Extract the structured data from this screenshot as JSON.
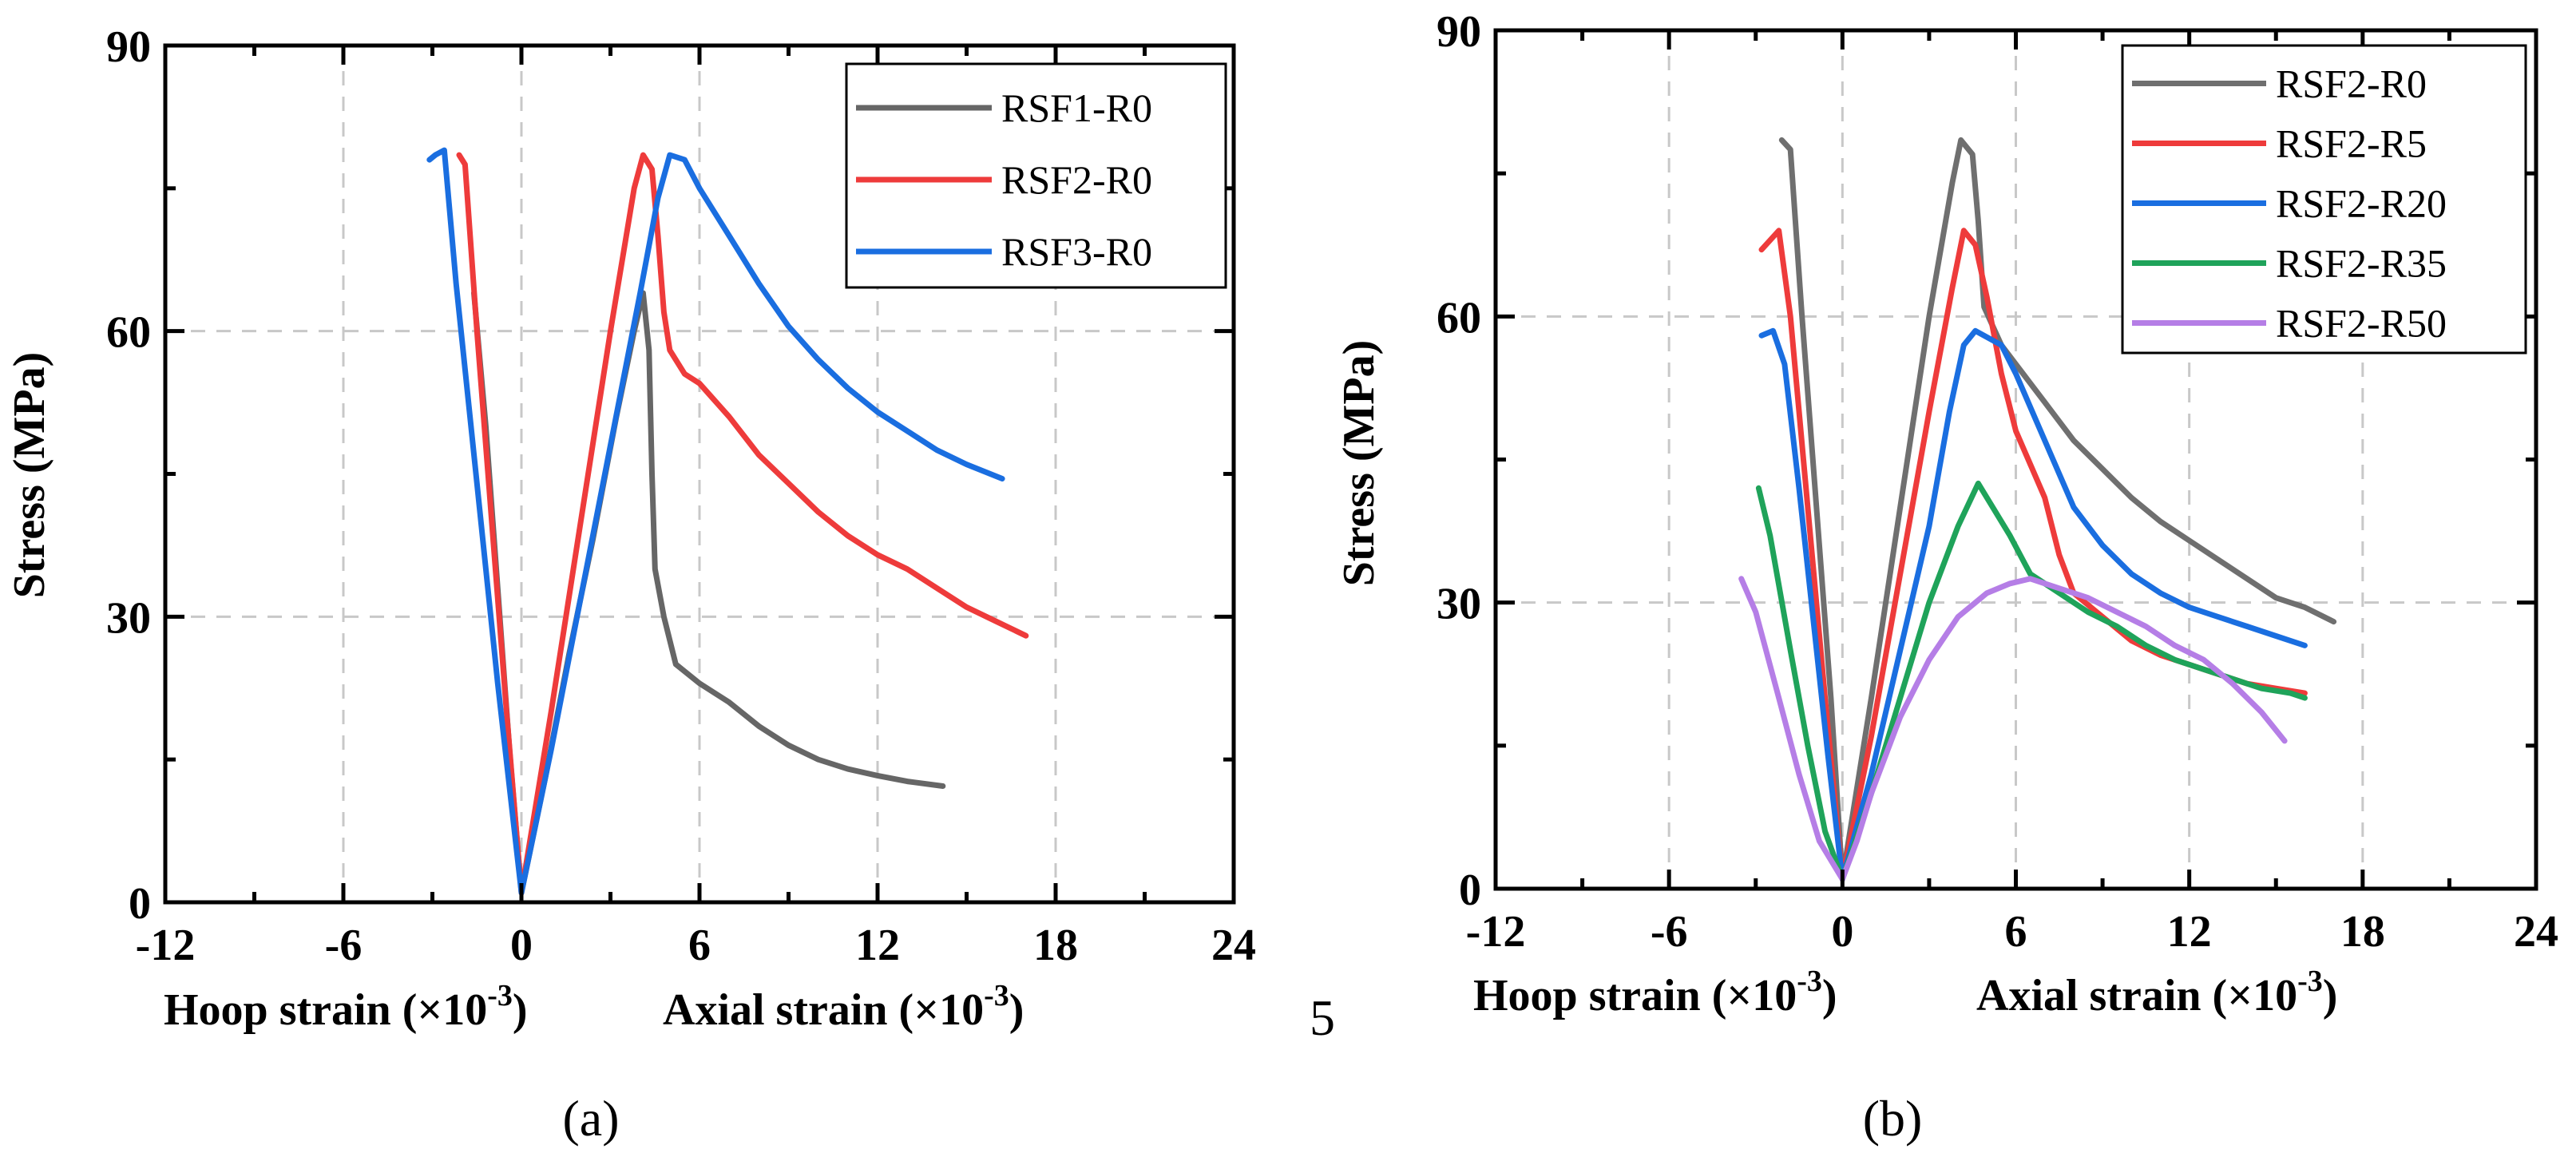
{
  "chart_data": [
    {
      "type": "line",
      "panel_label": "(a)",
      "xlim": [
        -12,
        24
      ],
      "ylim": [
        0,
        90
      ],
      "xticks": [
        "-12",
        "-6",
        "0",
        "6",
        "12",
        "18",
        "24"
      ],
      "yticks": [
        "0",
        "30",
        "60",
        "90"
      ],
      "ylabel": "Stress (MPa)",
      "xlabel_left": "Hoop strain (×10",
      "xlabel_right": "Axial strain (×10",
      "xlabel_exp": "-3",
      "xlabel_close": ")",
      "grid": true,
      "legend_position": "top-right",
      "series": [
        {
          "name": "RSF1-R0",
          "color": "#666666",
          "hoop": [
            [
              -1.6,
              64
            ],
            [
              -1.2,
              50
            ],
            [
              -0.8,
              33
            ],
            [
              -0.4,
              16
            ],
            [
              0,
              1
            ]
          ],
          "axial": [
            [
              0,
              1
            ],
            [
              0.8,
              13
            ],
            [
              1.6,
              26
            ],
            [
              2.4,
              38
            ],
            [
              3.2,
              51
            ],
            [
              3.8,
              60
            ],
            [
              4.1,
              64
            ],
            [
              4.3,
              58
            ],
            [
              4.4,
              45
            ],
            [
              4.5,
              35
            ],
            [
              4.8,
              30
            ],
            [
              5.2,
              25
            ],
            [
              6,
              23
            ],
            [
              7,
              21
            ],
            [
              8,
              18.5
            ],
            [
              9,
              16.5
            ],
            [
              10,
              15
            ],
            [
              11,
              14
            ],
            [
              12,
              13.3
            ],
            [
              13,
              12.7
            ],
            [
              14.2,
              12.2
            ]
          ]
        },
        {
          "name": "RSF2-R0",
          "color": "#ee3b3b",
          "hoop": [
            [
              -2.1,
              78.5
            ],
            [
              -1.9,
              77.5
            ],
            [
              -1.5,
              60
            ],
            [
              -1,
              40
            ],
            [
              -0.5,
              20
            ],
            [
              0,
              1
            ]
          ],
          "axial": [
            [
              0,
              1
            ],
            [
              1,
              20
            ],
            [
              2,
              40
            ],
            [
              3,
              60
            ],
            [
              3.8,
              75
            ],
            [
              4.1,
              78.5
            ],
            [
              4.4,
              77
            ],
            [
              4.6,
              70
            ],
            [
              4.8,
              62
            ],
            [
              5,
              58
            ],
            [
              5.5,
              55.5
            ],
            [
              6,
              54.5
            ],
            [
              7,
              51
            ],
            [
              8,
              47
            ],
            [
              9,
              44
            ],
            [
              10,
              41
            ],
            [
              11,
              38.5
            ],
            [
              12,
              36.5
            ],
            [
              13,
              35
            ],
            [
              14,
              33
            ],
            [
              15,
              31
            ],
            [
              16,
              29.5
            ],
            [
              17,
              28
            ]
          ]
        },
        {
          "name": "RSF3-R0",
          "color": "#1a6ee0",
          "hoop": [
            [
              -3.1,
              78
            ],
            [
              -2.9,
              78.5
            ],
            [
              -2.6,
              79
            ],
            [
              -2.2,
              65
            ],
            [
              -1.5,
              44
            ],
            [
              -0.8,
              23
            ],
            [
              0,
              1
            ]
          ],
          "axial": [
            [
              0,
              1
            ],
            [
              1,
              16
            ],
            [
              2,
              32
            ],
            [
              3,
              48
            ],
            [
              4,
              64
            ],
            [
              4.6,
              74
            ],
            [
              5,
              78.5
            ],
            [
              5.5,
              78
            ],
            [
              6,
              75
            ],
            [
              7,
              70
            ],
            [
              8,
              65
            ],
            [
              9,
              60.5
            ],
            [
              10,
              57
            ],
            [
              11,
              54
            ],
            [
              12,
              51.5
            ],
            [
              13,
              49.5
            ],
            [
              14,
              47.5
            ],
            [
              15,
              46
            ],
            [
              16.2,
              44.5
            ]
          ]
        }
      ]
    },
    {
      "type": "line",
      "panel_label": "(b)",
      "xlim": [
        -12,
        24
      ],
      "ylim": [
        0,
        90
      ],
      "xticks": [
        "-12",
        "-6",
        "0",
        "6",
        "12",
        "18",
        "24"
      ],
      "yticks": [
        "0",
        "30",
        "60",
        "90"
      ],
      "ylabel": "Stress (MPa)",
      "xlabel_left": "Hoop strain (×10",
      "xlabel_right": "Axial strain (×10",
      "xlabel_exp": "-3",
      "xlabel_close": ")",
      "grid": true,
      "legend_position": "top-right",
      "series": [
        {
          "name": "RSF2-R0",
          "color": "#6f6f6f",
          "hoop": [
            [
              -2.1,
              78.5
            ],
            [
              -1.8,
              77.5
            ],
            [
              -1.4,
              60
            ],
            [
              -0.9,
              40
            ],
            [
              -0.4,
              20
            ],
            [
              0,
              1
            ]
          ],
          "axial": [
            [
              0,
              1
            ],
            [
              1,
              20
            ],
            [
              2,
              40
            ],
            [
              3,
              60
            ],
            [
              3.8,
              74
            ],
            [
              4.1,
              78.5
            ],
            [
              4.5,
              77
            ],
            [
              4.7,
              70
            ],
            [
              4.9,
              61
            ],
            [
              5.5,
              57
            ],
            [
              6,
              55
            ],
            [
              7,
              51
            ],
            [
              8,
              47
            ],
            [
              9,
              44
            ],
            [
              10,
              41
            ],
            [
              11,
              38.5
            ],
            [
              12,
              36.5
            ],
            [
              13,
              34.5
            ],
            [
              14,
              32.5
            ],
            [
              15,
              30.5
            ],
            [
              16,
              29.5
            ],
            [
              17,
              28
            ]
          ]
        },
        {
          "name": "RSF2-R5",
          "color": "#ee3b3b",
          "hoop": [
            [
              -2.8,
              67
            ],
            [
              -2.5,
              68
            ],
            [
              -2.2,
              69
            ],
            [
              -1.8,
              60
            ],
            [
              -1.2,
              40
            ],
            [
              -0.6,
              20
            ],
            [
              0,
              1
            ]
          ],
          "axial": [
            [
              0,
              1
            ],
            [
              1,
              16
            ],
            [
              2,
              33
            ],
            [
              3,
              50
            ],
            [
              3.8,
              63
            ],
            [
              4.2,
              69
            ],
            [
              4.6,
              67.5
            ],
            [
              5,
              62
            ],
            [
              5.5,
              54
            ],
            [
              6,
              48
            ],
            [
              7,
              41
            ],
            [
              7.5,
              35
            ],
            [
              8,
              31
            ],
            [
              9,
              28.5
            ],
            [
              10,
              26
            ],
            [
              11,
              24.5
            ],
            [
              12,
              23.5
            ],
            [
              13,
              22.5
            ],
            [
              14,
              21.5
            ],
            [
              15,
              21
            ],
            [
              16,
              20.5
            ]
          ]
        },
        {
          "name": "RSF2-R20",
          "color": "#1a6ee0",
          "hoop": [
            [
              -2.8,
              58
            ],
            [
              -2.4,
              58.5
            ],
            [
              -2,
              55
            ],
            [
              -1.5,
              42
            ],
            [
              -1,
              28
            ],
            [
              -0.5,
              14
            ],
            [
              0,
              1
            ]
          ],
          "axial": [
            [
              0,
              1
            ],
            [
              1,
              12
            ],
            [
              2,
              25
            ],
            [
              3,
              38
            ],
            [
              3.7,
              50
            ],
            [
              4.2,
              57
            ],
            [
              4.6,
              58.5
            ],
            [
              5.5,
              57
            ],
            [
              6,
              54
            ],
            [
              7,
              47
            ],
            [
              8,
              40
            ],
            [
              9,
              36
            ],
            [
              10,
              33
            ],
            [
              11,
              31
            ],
            [
              12,
              29.5
            ],
            [
              13,
              28.5
            ],
            [
              14,
              27.5
            ],
            [
              15,
              26.5
            ],
            [
              16,
              25.5
            ]
          ]
        },
        {
          "name": "RSF2-R35",
          "color": "#1fa35a",
          "hoop": [
            [
              -2.9,
              42
            ],
            [
              -2.5,
              37
            ],
            [
              -1.8,
              25
            ],
            [
              -1.2,
              15
            ],
            [
              -0.6,
              6
            ],
            [
              0,
              1
            ]
          ],
          "axial": [
            [
              0,
              1
            ],
            [
              1,
              10
            ],
            [
              2,
              20
            ],
            [
              3,
              30
            ],
            [
              4,
              38
            ],
            [
              4.7,
              42.5
            ],
            [
              5.2,
              40
            ],
            [
              5.8,
              37
            ],
            [
              6.5,
              33
            ],
            [
              7.5,
              31
            ],
            [
              8.5,
              29
            ],
            [
              9.5,
              27.5
            ],
            [
              10.5,
              25.5
            ],
            [
              11.5,
              24
            ],
            [
              12.5,
              23
            ],
            [
              13.5,
              22
            ],
            [
              14.5,
              21
            ],
            [
              15.5,
              20.5
            ],
            [
              16,
              20
            ]
          ]
        },
        {
          "name": "RSF2-R50",
          "color": "#b57ee6",
          "hoop": [
            [
              -3.5,
              32.5
            ],
            [
              -3,
              29
            ],
            [
              -2.2,
              20
            ],
            [
              -1.5,
              12
            ],
            [
              -0.8,
              5
            ],
            [
              0,
              1
            ]
          ],
          "axial": [
            [
              0,
              1
            ],
            [
              0.5,
              5
            ],
            [
              1,
              10
            ],
            [
              2,
              18
            ],
            [
              3,
              24
            ],
            [
              4,
              28.5
            ],
            [
              5,
              31
            ],
            [
              5.8,
              32
            ],
            [
              6.5,
              32.5
            ],
            [
              7.5,
              31.5
            ],
            [
              8.5,
              30.5
            ],
            [
              9.5,
              29
            ],
            [
              10.5,
              27.5
            ],
            [
              11.5,
              25.5
            ],
            [
              12.5,
              24
            ],
            [
              13.5,
              21.5
            ],
            [
              14.5,
              18.5
            ],
            [
              15.3,
              15.5
            ]
          ]
        }
      ]
    }
  ],
  "stray_text": "5"
}
